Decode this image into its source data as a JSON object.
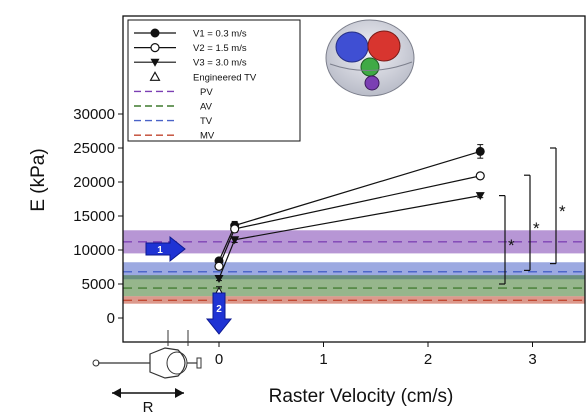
{
  "chart_data": {
    "type": "line",
    "title": "",
    "xlabel": "Raster Velocity (cm/s)",
    "ylabel": "E (kPa)",
    "xlim": [
      -0.9,
      3.3
    ],
    "ylim": [
      -1500,
      30000
    ],
    "xticks": [
      0,
      1,
      2,
      3
    ],
    "yticks": [
      0,
      5000,
      10000,
      15000,
      20000,
      25000,
      30000
    ],
    "series": [
      {
        "name": "V1 = 0.3 m/s",
        "marker": "circle-filled",
        "x": [
          0,
          0.15,
          2.5
        ],
        "y": [
          8400,
          13600,
          24500
        ],
        "err": [
          400,
          600,
          1000
        ]
      },
      {
        "name": "V2 = 1.5 m/s",
        "marker": "circle-open",
        "x": [
          0,
          0.15,
          2.5
        ],
        "y": [
          7600,
          13100,
          20900
        ],
        "err": [
          300,
          500,
          400
        ]
      },
      {
        "name": "V3 = 3.0 m/s",
        "marker": "triangle-down-filled",
        "x": [
          0,
          0.15,
          2.5
        ],
        "y": [
          5800,
          11500,
          18000
        ],
        "err": [
          300,
          400,
          300
        ]
      }
    ],
    "points": [
      {
        "name": "Engineered TV",
        "marker": "triangle-open",
        "x": 0,
        "y": 3800,
        "err": 800
      }
    ],
    "bands": [
      {
        "name": "PV",
        "mean": 11200,
        "low": 9500,
        "high": 12900,
        "color": "#7b3fb3"
      },
      {
        "name": "TV",
        "mean": 6800,
        "low": 5700,
        "high": 8200,
        "color": "#4a63c8"
      },
      {
        "name": "AV",
        "mean": 4400,
        "low": 3200,
        "high": 6300,
        "color": "#3f7a2e"
      },
      {
        "name": "MV",
        "mean": 2600,
        "low": 2100,
        "high": 3200,
        "color": "#c0452e"
      }
    ],
    "band_legend_order": [
      "PV",
      "AV",
      "TV",
      "MV"
    ],
    "significance": [
      {
        "label": "*",
        "series": "V3 = 3.0 m/s",
        "y_bottom": 5000,
        "y_top": 18000
      },
      {
        "label": "*",
        "series": "V2 = 1.5 m/s",
        "y_bottom": 7000,
        "y_top": 21000
      },
      {
        "label": "*",
        "series": "V1 = 0.3 m/s",
        "y_bottom": 8000,
        "y_top": 25000
      }
    ],
    "arrows": [
      {
        "label": "1",
        "direction": "right",
        "y": 6800
      },
      {
        "label": "2",
        "direction": "down",
        "x": 0
      }
    ],
    "inset_label": "R",
    "grid": false,
    "legend_position": "top-left"
  }
}
